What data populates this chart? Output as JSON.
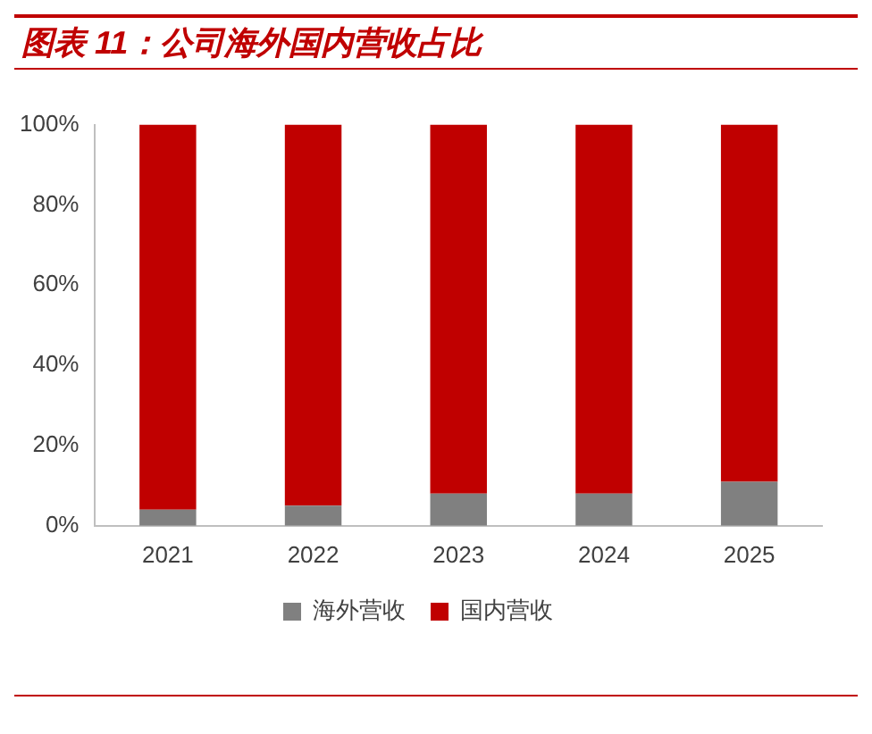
{
  "chart_data": {
    "type": "bar",
    "title": "图表 11：公司海外国内营收占比",
    "categories": [
      "2021",
      "2022",
      "2023",
      "2024",
      "2025"
    ],
    "stacked": true,
    "series": [
      {
        "name": "海外营收",
        "color": "#808080",
        "values": [
          4,
          5,
          8,
          8,
          11
        ]
      },
      {
        "name": "国内营收",
        "color": "#c00000",
        "values": [
          96,
          95,
          92,
          92,
          89
        ]
      }
    ],
    "ylim": [
      0,
      100
    ],
    "yticks": [
      {
        "value": 0,
        "label": "0%"
      },
      {
        "value": 20,
        "label": "20%"
      },
      {
        "value": 40,
        "label": "40%"
      },
      {
        "value": 60,
        "label": "60%"
      },
      {
        "value": 80,
        "label": "80%"
      },
      {
        "value": 100,
        "label": "100%"
      }
    ],
    "grid": false,
    "legend": "bottom"
  }
}
